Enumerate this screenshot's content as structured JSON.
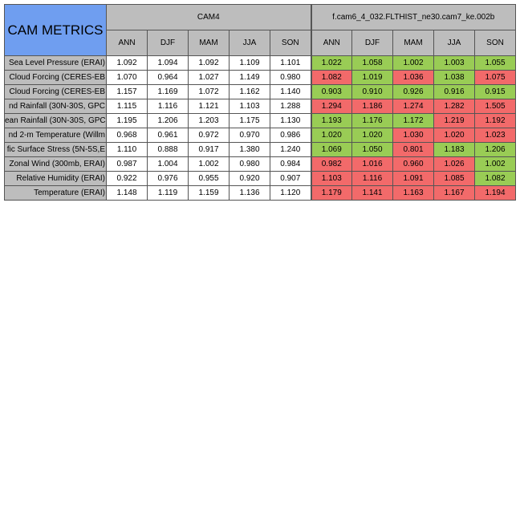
{
  "colors": {
    "title_bg": "#6f9ef0",
    "header_bg": "#bdbdbd",
    "better": "#99cc55",
    "worse": "#f26a6a"
  },
  "chart_data": {
    "type": "table",
    "title": "CAM METRICS",
    "groups": [
      "CAM4",
      "f.cam6_4_032.FLTHIST_ne30.cam7_ke.002b"
    ],
    "seasons": [
      "ANN",
      "DJF",
      "MAM",
      "JJA",
      "SON"
    ],
    "rows": [
      {
        "label": "Sea Level Pressure (ERAI)",
        "cam4": [
          "1.092",
          "1.094",
          "1.092",
          "1.109",
          "1.101"
        ],
        "exp": [
          "1.022",
          "1.058",
          "1.002",
          "1.003",
          "1.055"
        ],
        "status": [
          "good",
          "good",
          "good",
          "good",
          "good"
        ]
      },
      {
        "label": "Cloud Forcing (CERES-EB",
        "cam4": [
          "1.070",
          "0.964",
          "1.027",
          "1.149",
          "0.980"
        ],
        "exp": [
          "1.082",
          "1.019",
          "1.036",
          "1.038",
          "1.075"
        ],
        "status": [
          "bad",
          "good",
          "bad",
          "good",
          "bad"
        ]
      },
      {
        "label": "Cloud Forcing (CERES-EB",
        "cam4": [
          "1.157",
          "1.169",
          "1.072",
          "1.162",
          "1.140"
        ],
        "exp": [
          "0.903",
          "0.910",
          "0.926",
          "0.916",
          "0.915"
        ],
        "status": [
          "good",
          "good",
          "good",
          "good",
          "good"
        ]
      },
      {
        "label": "nd Rainfall (30N-30S, GPC",
        "cam4": [
          "1.115",
          "1.116",
          "1.121",
          "1.103",
          "1.288"
        ],
        "exp": [
          "1.294",
          "1.186",
          "1.274",
          "1.282",
          "1.505"
        ],
        "status": [
          "bad",
          "bad",
          "bad",
          "bad",
          "bad"
        ]
      },
      {
        "label": "ean Rainfall (30N-30S, GPC",
        "cam4": [
          "1.195",
          "1.206",
          "1.203",
          "1.175",
          "1.130"
        ],
        "exp": [
          "1.193",
          "1.176",
          "1.172",
          "1.219",
          "1.192"
        ],
        "status": [
          "good",
          "good",
          "good",
          "bad",
          "bad"
        ]
      },
      {
        "label": "nd 2-m Temperature (Willm",
        "cam4": [
          "0.968",
          "0.961",
          "0.972",
          "0.970",
          "0.986"
        ],
        "exp": [
          "1.020",
          "1.020",
          "1.030",
          "1.020",
          "1.023"
        ],
        "status": [
          "good",
          "good",
          "bad",
          "bad",
          "bad"
        ]
      },
      {
        "label": "fic Surface Stress (5N-5S,E",
        "cam4": [
          "1.110",
          "0.888",
          "0.917",
          "1.380",
          "1.240"
        ],
        "exp": [
          "1.069",
          "1.050",
          "0.801",
          "1.183",
          "1.206"
        ],
        "status": [
          "good",
          "good",
          "bad",
          "good",
          "good"
        ]
      },
      {
        "label": "Zonal Wind (300mb, ERAI)",
        "cam4": [
          "0.987",
          "1.004",
          "1.002",
          "0.980",
          "0.984"
        ],
        "exp": [
          "0.982",
          "1.016",
          "0.960",
          "1.026",
          "1.002"
        ],
        "status": [
          "bad",
          "bad",
          "bad",
          "bad",
          "good"
        ]
      },
      {
        "label": "Relative Humidity (ERAI)",
        "cam4": [
          "0.922",
          "0.976",
          "0.955",
          "0.920",
          "0.907"
        ],
        "exp": [
          "1.103",
          "1.116",
          "1.091",
          "1.085",
          "1.082"
        ],
        "status": [
          "bad",
          "bad",
          "bad",
          "bad",
          "good"
        ]
      },
      {
        "label": "Temperature (ERAI)",
        "cam4": [
          "1.148",
          "1.119",
          "1.159",
          "1.136",
          "1.120"
        ],
        "exp": [
          "1.179",
          "1.141",
          "1.163",
          "1.167",
          "1.194"
        ],
        "status": [
          "bad",
          "bad",
          "bad",
          "bad",
          "bad"
        ]
      }
    ]
  }
}
